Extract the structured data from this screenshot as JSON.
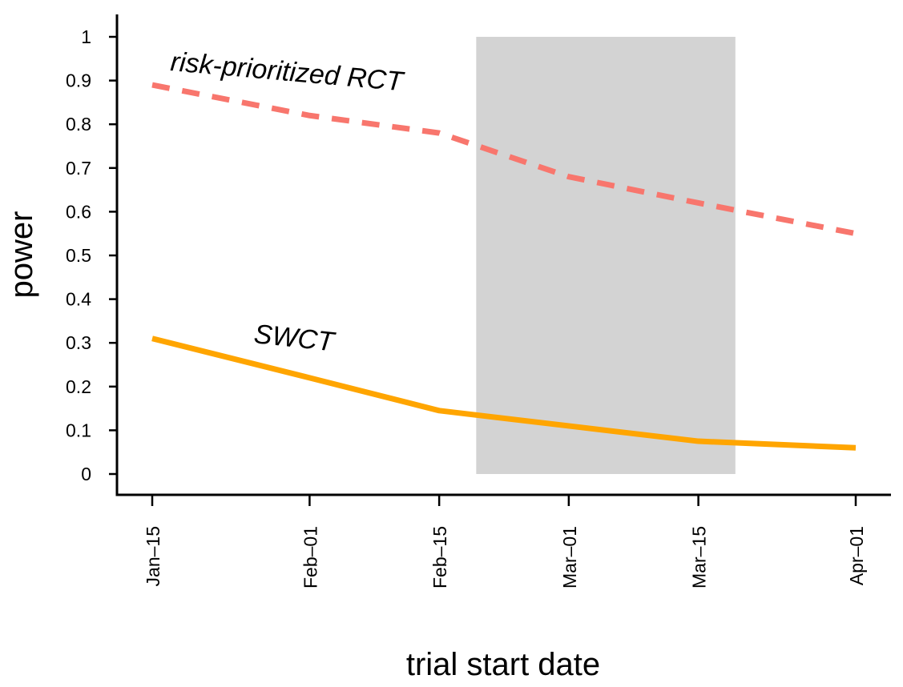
{
  "chart_data": {
    "type": "line",
    "xlabel": "trial start date",
    "ylabel": "power",
    "ylim": [
      0,
      1
    ],
    "yticks": [
      0,
      0.1,
      0.2,
      0.3,
      0.4,
      0.5,
      0.6,
      0.7,
      0.8,
      0.9,
      1
    ],
    "xticks": [
      "Jan–15",
      "Feb–01",
      "Feb–15",
      "Mar–01",
      "Mar–15",
      "Apr–01"
    ],
    "x": [
      "Jan-15",
      "Feb-01",
      "Feb-15",
      "Mar-01",
      "Mar-15",
      "Apr-01"
    ],
    "shaded_region": {
      "start": "Feb-19",
      "end": "Mar-19",
      "color": "#d3d3d3"
    },
    "grid": false,
    "series": [
      {
        "name": "risk-prioritized RCT",
        "style": "dashed",
        "color": "#f8766d",
        "values": [
          0.89,
          0.82,
          0.78,
          0.68,
          0.62,
          0.55
        ]
      },
      {
        "name": "SWCT",
        "style": "solid",
        "color": "#ffa500",
        "values": [
          0.31,
          0.22,
          0.145,
          0.11,
          0.075,
          0.06
        ]
      }
    ]
  }
}
